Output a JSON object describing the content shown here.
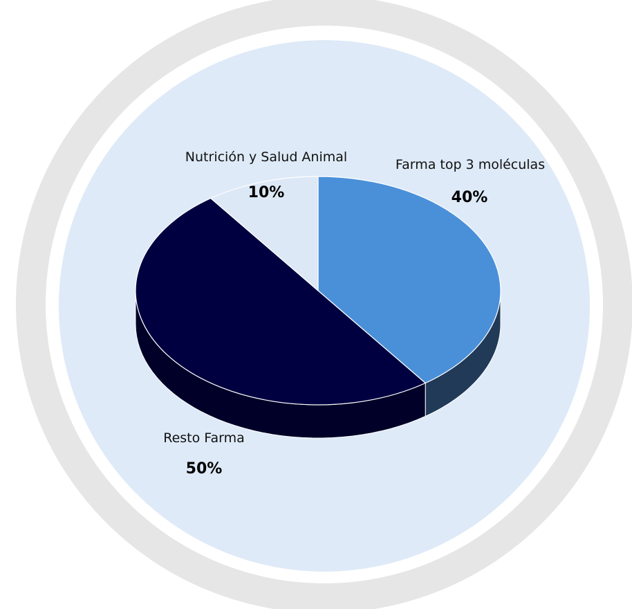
{
  "chart_data": {
    "type": "pie",
    "style": "3d",
    "categories": [
      "Farma top 3 moléculas",
      "Resto Farma",
      "Nutrición y Salud Animal"
    ],
    "values": [
      40,
      50,
      10
    ],
    "value_labels": [
      "40%",
      "50%",
      "10%"
    ],
    "colors": [
      "#4a90d9",
      "#000040",
      "#dde8f6"
    ],
    "side_colors": [
      "#213a57",
      "#000028",
      "#b9c6d8"
    ],
    "legend": "none"
  },
  "background": {
    "outer_ring_color": "#e6e6e6",
    "inner_gap_color": "#ffffff",
    "inner_disc_color": "#deeaf7"
  }
}
